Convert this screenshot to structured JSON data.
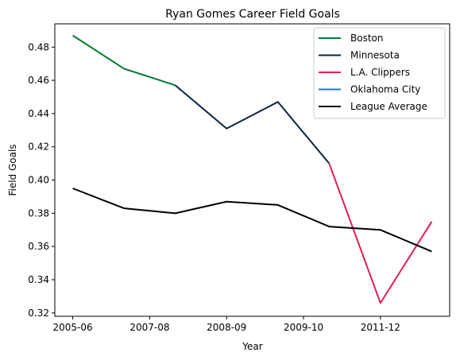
{
  "chart_data": {
    "type": "line",
    "title": "Ryan Gomes Career Field Goals",
    "xlabel": "Year",
    "ylabel": "Field Goals",
    "x_ticks": [
      "2005-06",
      "2007-08",
      "2008-09",
      "2009-10",
      "2011-12"
    ],
    "y_ticks": [
      "0.32",
      "0.34",
      "0.36",
      "0.38",
      "0.40",
      "0.42",
      "0.44",
      "0.46",
      "0.48"
    ],
    "ylim": [
      0.318,
      0.494
    ],
    "legend_position": "top-right",
    "series": [
      {
        "name": "Boston",
        "color": "#007a33",
        "points": [
          [
            0,
            0.487
          ],
          [
            1,
            0.467
          ],
          [
            2,
            0.457
          ]
        ]
      },
      {
        "name": "Minnesota",
        "color": "#0c2340",
        "points": [
          [
            2,
            0.457
          ],
          [
            3,
            0.431
          ],
          [
            4,
            0.447
          ],
          [
            5,
            0.41
          ]
        ]
      },
      {
        "name": "L.A. Clippers",
        "color": "#e31e54",
        "points": [
          [
            5,
            0.41
          ],
          [
            6,
            0.326
          ],
          [
            7,
            0.375
          ]
        ]
      },
      {
        "name": "Oklahoma City",
        "color": "#1f77b4",
        "points": []
      },
      {
        "name": "League Average",
        "color": "#000000",
        "points": [
          [
            0,
            0.395
          ],
          [
            1,
            0.383
          ],
          [
            2,
            0.38
          ],
          [
            3,
            0.387
          ],
          [
            4,
            0.385
          ],
          [
            5,
            0.372
          ],
          [
            6,
            0.37
          ],
          [
            7,
            0.357
          ]
        ]
      }
    ]
  }
}
